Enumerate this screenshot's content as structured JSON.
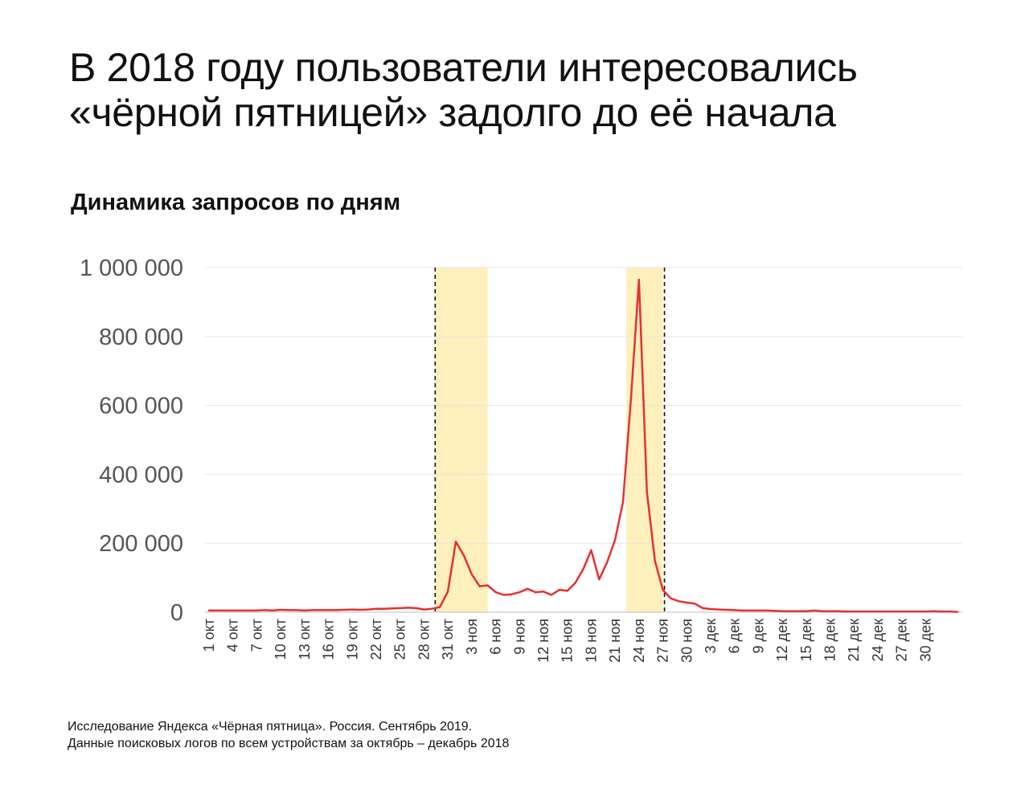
{
  "chart_data": {
    "type": "line",
    "title": "В 2018 году пользователи интересовались «чёрной пятницей» задолго до её начала",
    "title_lines": [
      "В 2018 году пользователи интересовались",
      "«чёрной пятницей» задолго до её начала"
    ],
    "subtitle": "Динамика запросов по дням",
    "xlabel": "",
    "ylabel": "",
    "ylim": [
      0,
      1000000
    ],
    "yticks": [
      0,
      200000,
      400000,
      600000,
      800000,
      1000000
    ],
    "ytick_labels": [
      "0",
      "200 000",
      "400 000",
      "600 000",
      "800 000",
      "1 000 000"
    ],
    "xtick_labels": [
      "1 окт",
      "4 окт",
      "7 окт",
      "10 окт",
      "13 окт",
      "16 окт",
      "19 окт",
      "22 окт",
      "25 окт",
      "28 окт",
      "31 окт",
      "3 ноя",
      "6 ноя",
      "9 ноя",
      "12 ноя",
      "15 ноя",
      "18 ноя",
      "21 ноя",
      "24 ноя",
      "27 ноя",
      "30 ноя",
      "3 дек",
      "6 дек",
      "9 дек",
      "12 дек",
      "15 дек",
      "18 дек",
      "21 дек",
      "24 дек",
      "27 дек",
      "30 дек"
    ],
    "xtick_step_days": 3,
    "grid": true,
    "line_color": "#e8302c",
    "highlight_color": "#fdf0bc",
    "highlight_ranges": [
      {
        "from_day": 28,
        "to_day": 35
      },
      {
        "from_day": 52,
        "to_day": 57
      }
    ],
    "dashed_markers_day": [
      28,
      57
    ],
    "series": [
      {
        "values": [
          5000,
          5000,
          5000,
          5000,
          5000,
          5000,
          5000,
          6000,
          5000,
          7000,
          6000,
          6000,
          5000,
          6000,
          6000,
          6000,
          6000,
          7000,
          8000,
          7000,
          8000,
          10000,
          10000,
          11000,
          12000,
          13000,
          12000,
          8000,
          10000,
          15000,
          60000,
          205000,
          165000,
          110000,
          75000,
          78000,
          58000,
          50000,
          52000,
          58000,
          68000,
          58000,
          60000,
          50000,
          65000,
          62000,
          85000,
          125000,
          180000,
          95000,
          145000,
          210000,
          320000,
          620000,
          965000,
          350000,
          150000,
          65000,
          40000,
          32000,
          28000,
          25000,
          12000,
          9000,
          8000,
          7000,
          6000,
          5000,
          5000,
          5000,
          5000,
          4000,
          3000,
          3000,
          3000,
          3000,
          5000,
          3000,
          3000,
          3000,
          2000,
          2000,
          2000,
          2000,
          2000,
          2000,
          2000,
          2000,
          2000,
          2000,
          2000,
          3000,
          2000,
          2000,
          1000
        ]
      }
    ]
  },
  "footer": {
    "line1": "Исследование Яндекса «Чёрная пятница». Россия. Сентябрь 2019.",
    "line2": "Данные поисковых логов по всем устройствам за октябрь – декабрь 2018"
  },
  "colors": {
    "line": "#e8302c",
    "highlight": "#fdf0bc",
    "grid": "#e6e6e6"
  }
}
